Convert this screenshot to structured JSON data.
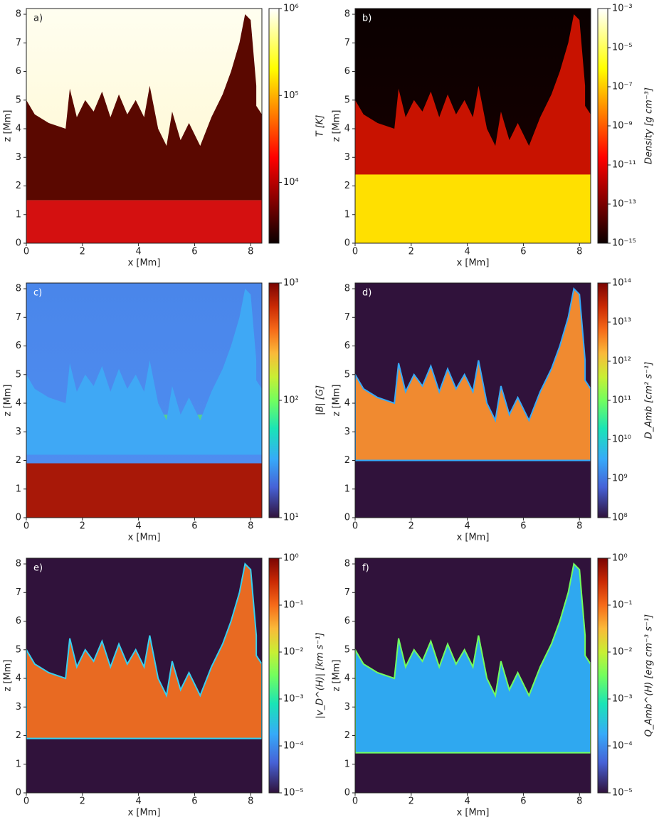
{
  "chart_data": [
    {
      "type": "heatmap",
      "panel_label": "a)",
      "xlabel": "x [Mm]",
      "ylabel": "z [Mm]",
      "xlim": [
        0,
        8.4
      ],
      "ylim": [
        0,
        8.2
      ],
      "xticks": [
        0,
        2,
        4,
        6,
        8
      ],
      "yticks": [
        0,
        1,
        2,
        3,
        4,
        5,
        6,
        7,
        8
      ],
      "colorbar": {
        "label": "T [K]",
        "log": true,
        "colormap": "hot",
        "clim": [
          2000,
          1000000
        ],
        "ticks": [
          {
            "value": 10000,
            "label": "10⁴"
          },
          {
            "value": 100000,
            "label": "10⁵"
          },
          {
            "value": 1000000,
            "label": "10⁶"
          }
        ]
      }
    },
    {
      "type": "heatmap",
      "panel_label": "b)",
      "xlabel": "x [Mm]",
      "ylabel": "z [Mm]",
      "xlim": [
        0,
        8.4
      ],
      "ylim": [
        0,
        8.2
      ],
      "xticks": [
        0,
        2,
        4,
        6,
        8
      ],
      "yticks": [
        0,
        1,
        2,
        3,
        4,
        5,
        6,
        7,
        8
      ],
      "colorbar": {
        "label": "Density [g cm⁻³]",
        "log": true,
        "colormap": "hot",
        "clim": [
          1e-15,
          0.001
        ],
        "ticks": [
          {
            "value": 1e-15,
            "label": "10⁻¹⁵"
          },
          {
            "value": 1e-13,
            "label": "10⁻¹³"
          },
          {
            "value": 1e-11,
            "label": "10⁻¹¹"
          },
          {
            "value": 1e-09,
            "label": "10⁻⁹"
          },
          {
            "value": 1e-07,
            "label": "10⁻⁷"
          },
          {
            "value": 1e-05,
            "label": "10⁻⁵"
          },
          {
            "value": 0.001,
            "label": "10⁻³"
          }
        ]
      }
    },
    {
      "type": "heatmap",
      "panel_label": "c)",
      "xlabel": "x [Mm]",
      "ylabel": "z [Mm]",
      "xlim": [
        0,
        8.4
      ],
      "ylim": [
        0,
        8.2
      ],
      "xticks": [
        0,
        2,
        4,
        6,
        8
      ],
      "yticks": [
        0,
        1,
        2,
        3,
        4,
        5,
        6,
        7,
        8
      ],
      "colorbar": {
        "label": "|B| [G]",
        "log": true,
        "colormap": "turbo",
        "clim": [
          10,
          1000
        ],
        "ticks": [
          {
            "value": 10,
            "label": "10¹"
          },
          {
            "value": 100,
            "label": "10²"
          },
          {
            "value": 1000,
            "label": "10³"
          }
        ]
      }
    },
    {
      "type": "heatmap",
      "panel_label": "d)",
      "xlabel": "x [Mm]",
      "ylabel": "z [Mm]",
      "xlim": [
        0,
        8.4
      ],
      "ylim": [
        0,
        8.2
      ],
      "xticks": [
        0,
        2,
        4,
        6,
        8
      ],
      "yticks": [
        0,
        1,
        2,
        3,
        4,
        5,
        6,
        7,
        8
      ],
      "colorbar": {
        "label": "D_Amb [cm² s⁻¹]",
        "log": true,
        "colormap": "turbo",
        "clim": [
          100000000,
          100000000000000
        ],
        "ticks": [
          {
            "value": 100000000,
            "label": "10⁸"
          },
          {
            "value": 1000000000,
            "label": "10⁹"
          },
          {
            "value": 10000000000,
            "label": "10¹⁰"
          },
          {
            "value": 100000000000,
            "label": "10¹¹"
          },
          {
            "value": 1000000000000,
            "label": "10¹²"
          },
          {
            "value": 10000000000000,
            "label": "10¹³"
          },
          {
            "value": 100000000000000,
            "label": "10¹⁴"
          }
        ]
      }
    },
    {
      "type": "heatmap",
      "panel_label": "e)",
      "xlabel": "x [Mm]",
      "ylabel": "z [Mm]",
      "xlim": [
        0,
        8.4
      ],
      "ylim": [
        0,
        8.2
      ],
      "xticks": [
        0,
        2,
        4,
        6,
        8
      ],
      "yticks": [
        0,
        1,
        2,
        3,
        4,
        5,
        6,
        7,
        8
      ],
      "colorbar": {
        "label": "|v_D^(H)| [km s⁻¹]",
        "log": true,
        "colormap": "turbo",
        "clim": [
          1e-05,
          1
        ],
        "ticks": [
          {
            "value": 1e-05,
            "label": "10⁻⁵"
          },
          {
            "value": 0.0001,
            "label": "10⁻⁴"
          },
          {
            "value": 0.001,
            "label": "10⁻³"
          },
          {
            "value": 0.01,
            "label": "10⁻²"
          },
          {
            "value": 0.1,
            "label": "10⁻¹"
          },
          {
            "value": 1,
            "label": "10⁰"
          }
        ]
      }
    },
    {
      "type": "heatmap",
      "panel_label": "f)",
      "xlabel": "x [Mm]",
      "ylabel": "z [Mm]",
      "xlim": [
        0,
        8.4
      ],
      "ylim": [
        0,
        8.2
      ],
      "xticks": [
        0,
        2,
        4,
        6,
        8
      ],
      "yticks": [
        0,
        1,
        2,
        3,
        4,
        5,
        6,
        7,
        8
      ],
      "colorbar": {
        "label": "Q_Amb^(H) [erg cm⁻³ s⁻¹]",
        "log": true,
        "colormap": "turbo",
        "clim": [
          1e-05,
          1
        ],
        "ticks": [
          {
            "value": 1e-05,
            "label": "10⁻⁵"
          },
          {
            "value": 0.0001,
            "label": "10⁻⁴"
          },
          {
            "value": 0.001,
            "label": "10⁻³"
          },
          {
            "value": 0.01,
            "label": "10⁻²"
          },
          {
            "value": 0.1,
            "label": "10⁻¹"
          },
          {
            "value": 1,
            "label": "10⁰"
          }
        ]
      }
    }
  ]
}
